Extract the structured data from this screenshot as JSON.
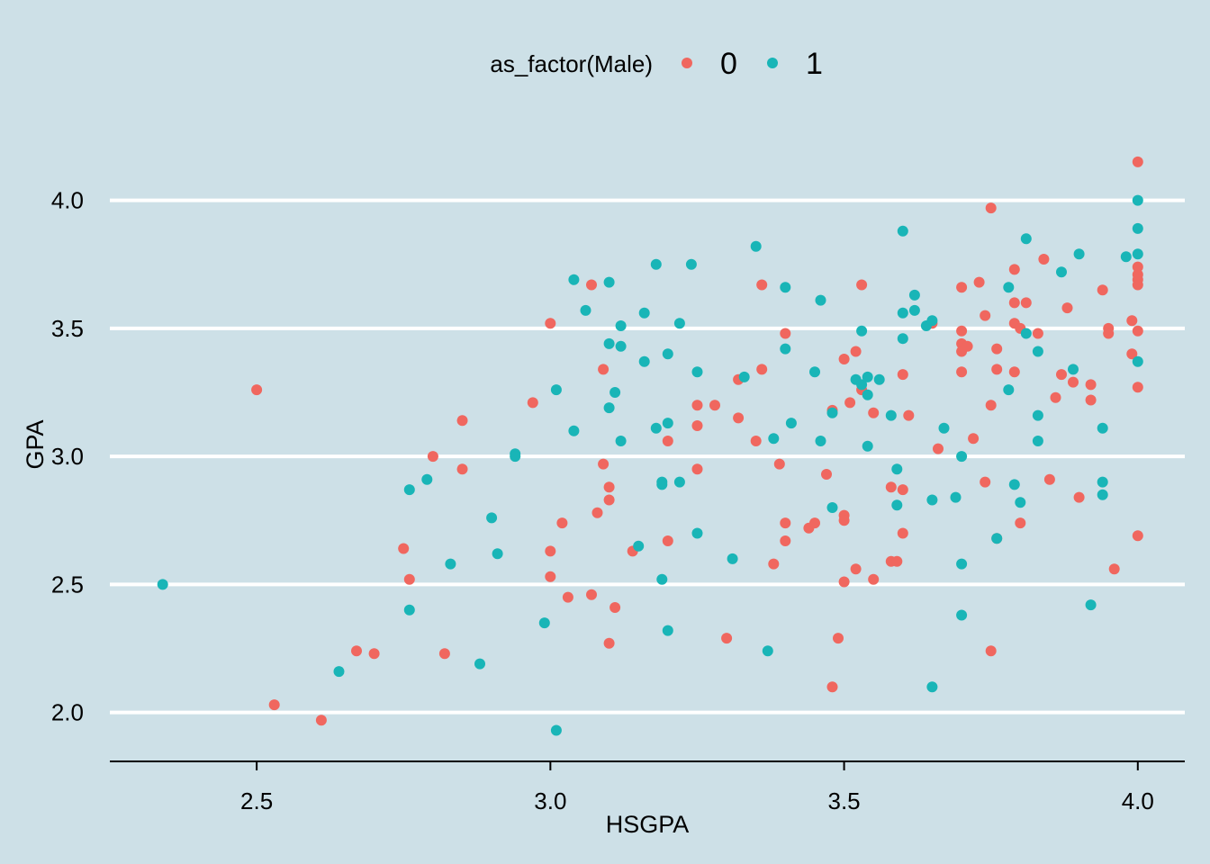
{
  "chart_data": {
    "type": "scatter",
    "xlabel": "HSGPA",
    "ylabel": "GPA",
    "xlim": [
      2.25,
      4.08
    ],
    "ylim": [
      1.83,
      4.22
    ],
    "xticks": [
      2.5,
      3.0,
      3.5,
      4.0
    ],
    "xtick_labels": [
      "2.5",
      "3.0",
      "3.5",
      "4.0"
    ],
    "yticks": [
      2.0,
      2.5,
      3.0,
      3.5,
      4.0
    ],
    "ytick_labels": [
      "2.0",
      "2.5",
      "3.0",
      "3.5",
      "4.0"
    ],
    "grid": "horizontal major",
    "legend": {
      "title": "as_factor(Male)",
      "position": "top"
    },
    "background_color": "#cde0e7",
    "series": [
      {
        "name": "0",
        "color": "#f0675f",
        "points": [
          [
            2.5,
            3.26
          ],
          [
            2.53,
            2.03
          ],
          [
            2.61,
            1.97
          ],
          [
            2.67,
            2.24
          ],
          [
            2.7,
            2.23
          ],
          [
            2.75,
            2.64
          ],
          [
            2.76,
            2.52
          ],
          [
            2.8,
            3.0
          ],
          [
            2.82,
            2.23
          ],
          [
            2.85,
            3.14
          ],
          [
            2.85,
            2.95
          ],
          [
            2.97,
            3.21
          ],
          [
            3.0,
            3.52
          ],
          [
            3.0,
            2.63
          ],
          [
            3.0,
            2.53
          ],
          [
            3.02,
            2.74
          ],
          [
            3.03,
            2.45
          ],
          [
            3.07,
            3.67
          ],
          [
            3.07,
            2.46
          ],
          [
            3.08,
            2.78
          ],
          [
            3.09,
            3.34
          ],
          [
            3.09,
            2.97
          ],
          [
            3.1,
            2.88
          ],
          [
            3.1,
            2.83
          ],
          [
            3.1,
            2.27
          ],
          [
            3.11,
            2.41
          ],
          [
            3.14,
            2.63
          ],
          [
            3.2,
            3.06
          ],
          [
            3.2,
            2.67
          ],
          [
            3.25,
            3.2
          ],
          [
            3.25,
            3.12
          ],
          [
            3.25,
            2.95
          ],
          [
            3.28,
            3.2
          ],
          [
            3.3,
            2.29
          ],
          [
            3.32,
            3.3
          ],
          [
            3.32,
            3.15
          ],
          [
            3.35,
            3.06
          ],
          [
            3.36,
            3.67
          ],
          [
            3.36,
            3.34
          ],
          [
            3.38,
            2.58
          ],
          [
            3.39,
            2.97
          ],
          [
            3.4,
            3.48
          ],
          [
            3.4,
            2.74
          ],
          [
            3.4,
            2.67
          ],
          [
            3.44,
            2.72
          ],
          [
            3.45,
            2.74
          ],
          [
            3.47,
            2.93
          ],
          [
            3.48,
            3.18
          ],
          [
            3.48,
            2.1
          ],
          [
            3.49,
            2.29
          ],
          [
            3.5,
            3.38
          ],
          [
            3.5,
            2.77
          ],
          [
            3.5,
            2.75
          ],
          [
            3.5,
            2.51
          ],
          [
            3.51,
            3.21
          ],
          [
            3.52,
            3.41
          ],
          [
            3.52,
            2.56
          ],
          [
            3.53,
            3.67
          ],
          [
            3.53,
            3.26
          ],
          [
            3.55,
            3.17
          ],
          [
            3.55,
            2.52
          ],
          [
            3.58,
            2.88
          ],
          [
            3.58,
            2.59
          ],
          [
            3.59,
            2.59
          ],
          [
            3.6,
            3.32
          ],
          [
            3.6,
            2.87
          ],
          [
            3.6,
            2.7
          ],
          [
            3.61,
            3.16
          ],
          [
            3.65,
            3.52
          ],
          [
            3.66,
            3.03
          ],
          [
            3.7,
            3.66
          ],
          [
            3.7,
            3.49
          ],
          [
            3.7,
            3.44
          ],
          [
            3.7,
            3.41
          ],
          [
            3.7,
            3.33
          ],
          [
            3.71,
            3.43
          ],
          [
            3.72,
            3.07
          ],
          [
            3.73,
            3.68
          ],
          [
            3.74,
            3.55
          ],
          [
            3.74,
            2.9
          ],
          [
            3.75,
            3.97
          ],
          [
            3.75,
            3.2
          ],
          [
            3.75,
            2.24
          ],
          [
            3.76,
            3.42
          ],
          [
            3.76,
            3.34
          ],
          [
            3.76,
            2.68
          ],
          [
            3.79,
            3.73
          ],
          [
            3.79,
            3.6
          ],
          [
            3.79,
            3.52
          ],
          [
            3.79,
            3.33
          ],
          [
            3.8,
            3.5
          ],
          [
            3.8,
            2.74
          ],
          [
            3.81,
            3.6
          ],
          [
            3.83,
            3.48
          ],
          [
            3.84,
            3.77
          ],
          [
            3.85,
            2.91
          ],
          [
            3.86,
            3.23
          ],
          [
            3.87,
            3.32
          ],
          [
            3.88,
            3.58
          ],
          [
            3.89,
            3.29
          ],
          [
            3.9,
            2.84
          ],
          [
            3.92,
            3.28
          ],
          [
            3.92,
            3.22
          ],
          [
            3.94,
            3.65
          ],
          [
            3.95,
            3.5
          ],
          [
            3.95,
            3.48
          ],
          [
            3.96,
            2.56
          ],
          [
            3.99,
            3.53
          ],
          [
            3.99,
            3.4
          ],
          [
            4.0,
            4.15
          ],
          [
            4.0,
            3.74
          ],
          [
            4.0,
            3.71
          ],
          [
            4.0,
            3.69
          ],
          [
            4.0,
            3.67
          ],
          [
            4.0,
            3.49
          ],
          [
            4.0,
            3.27
          ],
          [
            4.0,
            2.69
          ]
        ]
      },
      {
        "name": "1",
        "color": "#19b5b7",
        "points": [
          [
            2.34,
            2.5
          ],
          [
            2.64,
            2.16
          ],
          [
            2.76,
            2.87
          ],
          [
            2.76,
            2.4
          ],
          [
            2.79,
            2.91
          ],
          [
            2.83,
            2.58
          ],
          [
            2.88,
            2.19
          ],
          [
            2.9,
            2.76
          ],
          [
            2.91,
            2.62
          ],
          [
            2.94,
            3.01
          ],
          [
            2.94,
            3.0
          ],
          [
            2.99,
            2.35
          ],
          [
            3.01,
            3.26
          ],
          [
            3.01,
            1.93
          ],
          [
            3.04,
            3.69
          ],
          [
            3.04,
            3.1
          ],
          [
            3.06,
            3.57
          ],
          [
            3.1,
            3.68
          ],
          [
            3.1,
            3.44
          ],
          [
            3.1,
            3.19
          ],
          [
            3.11,
            3.25
          ],
          [
            3.12,
            3.51
          ],
          [
            3.12,
            3.43
          ],
          [
            3.12,
            3.06
          ],
          [
            3.15,
            2.65
          ],
          [
            3.16,
            3.56
          ],
          [
            3.16,
            3.37
          ],
          [
            3.18,
            3.75
          ],
          [
            3.18,
            3.11
          ],
          [
            3.19,
            2.9
          ],
          [
            3.19,
            2.89
          ],
          [
            3.19,
            2.52
          ],
          [
            3.2,
            3.4
          ],
          [
            3.2,
            3.13
          ],
          [
            3.2,
            2.32
          ],
          [
            3.22,
            3.52
          ],
          [
            3.22,
            2.9
          ],
          [
            3.24,
            3.75
          ],
          [
            3.25,
            3.33
          ],
          [
            3.25,
            2.7
          ],
          [
            3.31,
            2.6
          ],
          [
            3.33,
            3.31
          ],
          [
            3.35,
            3.82
          ],
          [
            3.37,
            2.24
          ],
          [
            3.38,
            3.07
          ],
          [
            3.4,
            3.66
          ],
          [
            3.4,
            3.42
          ],
          [
            3.41,
            3.13
          ],
          [
            3.45,
            3.33
          ],
          [
            3.46,
            3.61
          ],
          [
            3.46,
            3.06
          ],
          [
            3.48,
            3.17
          ],
          [
            3.48,
            2.8
          ],
          [
            3.52,
            3.3
          ],
          [
            3.53,
            3.49
          ],
          [
            3.53,
            3.28
          ],
          [
            3.54,
            3.31
          ],
          [
            3.54,
            3.24
          ],
          [
            3.54,
            3.04
          ],
          [
            3.56,
            3.3
          ],
          [
            3.58,
            3.16
          ],
          [
            3.59,
            2.95
          ],
          [
            3.59,
            2.81
          ],
          [
            3.6,
            3.88
          ],
          [
            3.6,
            3.56
          ],
          [
            3.6,
            3.46
          ],
          [
            3.62,
            3.63
          ],
          [
            3.62,
            3.57
          ],
          [
            3.64,
            3.51
          ],
          [
            3.65,
            3.53
          ],
          [
            3.65,
            2.83
          ],
          [
            3.65,
            2.1
          ],
          [
            3.67,
            3.11
          ],
          [
            3.69,
            2.84
          ],
          [
            3.7,
            3.0
          ],
          [
            3.7,
            2.58
          ],
          [
            3.7,
            2.38
          ],
          [
            3.76,
            2.68
          ],
          [
            3.78,
            3.66
          ],
          [
            3.78,
            3.26
          ],
          [
            3.79,
            2.89
          ],
          [
            3.8,
            2.82
          ],
          [
            3.81,
            3.85
          ],
          [
            3.81,
            3.48
          ],
          [
            3.83,
            3.41
          ],
          [
            3.83,
            3.16
          ],
          [
            3.83,
            3.06
          ],
          [
            3.87,
            3.72
          ],
          [
            3.89,
            3.34
          ],
          [
            3.9,
            3.79
          ],
          [
            3.92,
            2.42
          ],
          [
            3.94,
            3.11
          ],
          [
            3.94,
            2.9
          ],
          [
            3.94,
            2.85
          ],
          [
            3.98,
            3.78
          ],
          [
            4.0,
            4.0
          ],
          [
            4.0,
            3.89
          ],
          [
            4.0,
            3.79
          ],
          [
            4.0,
            3.37
          ]
        ]
      }
    ]
  }
}
